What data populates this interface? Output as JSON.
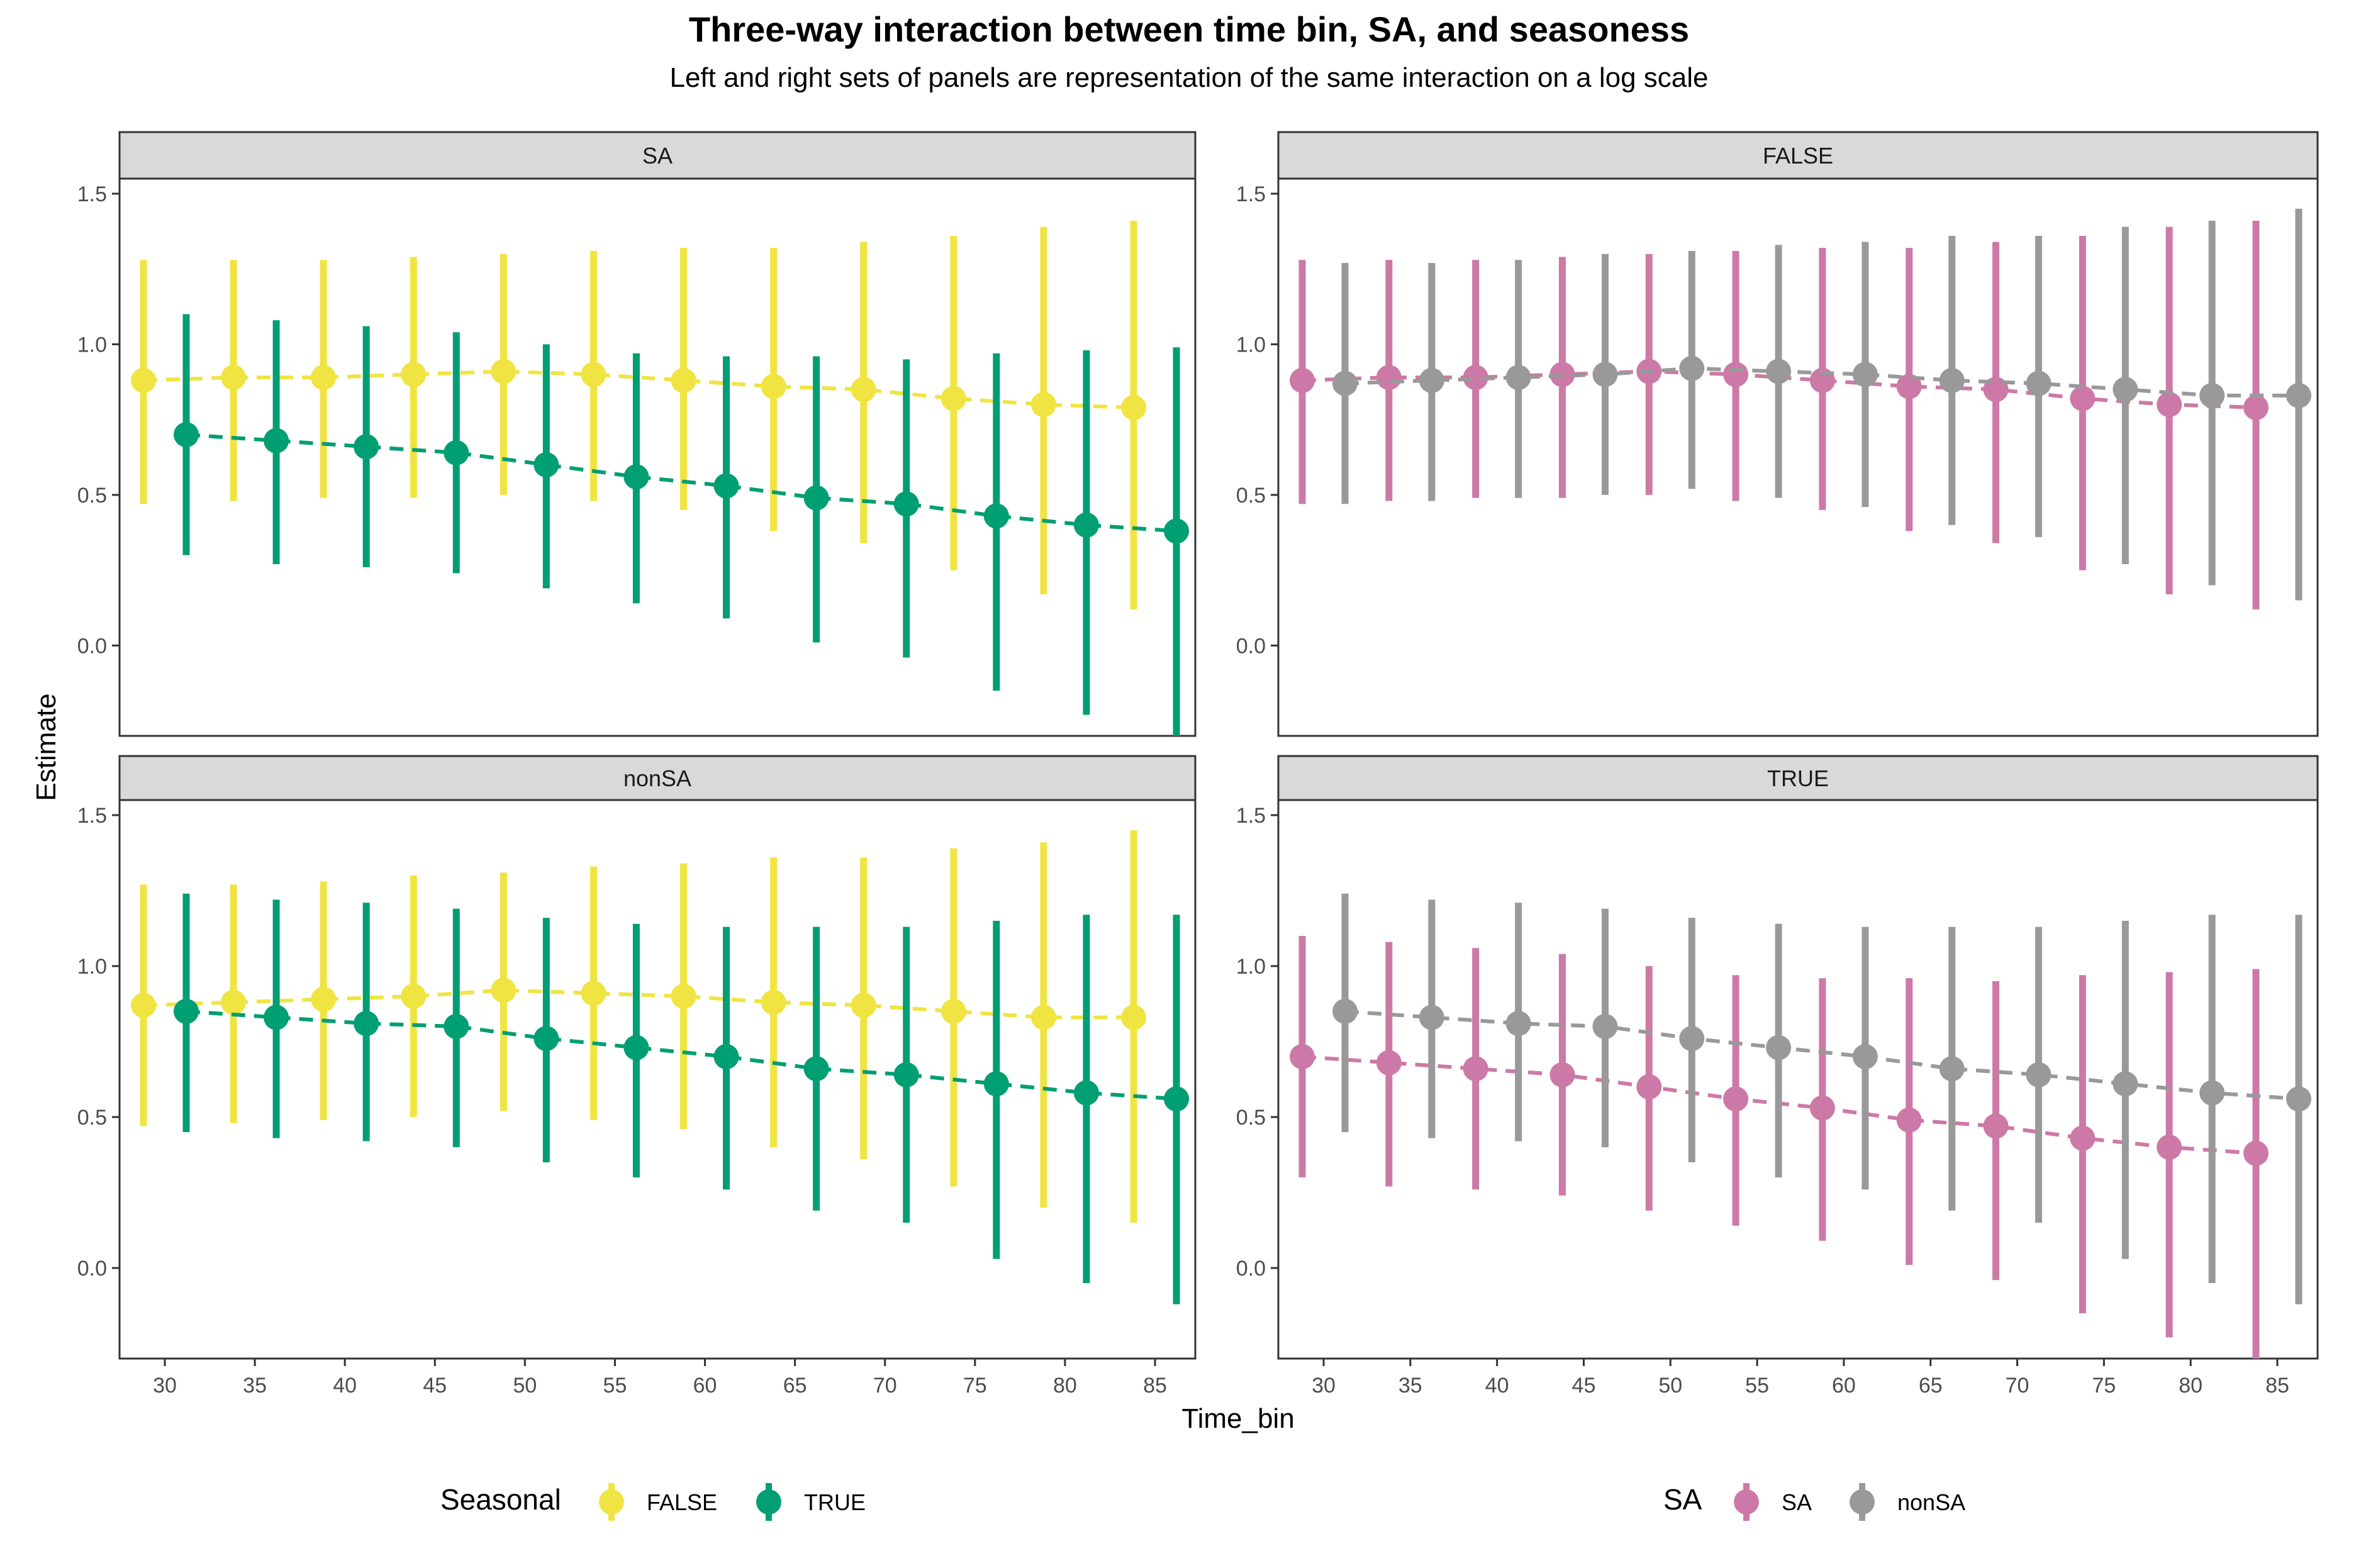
{
  "title": "Three-way interaction between time bin, SA, and seasoness",
  "subtitle": "Left and right sets of panels are representation of the same interaction on a log scale",
  "xlabel": "Time_bin",
  "ylabel": "Estimate",
  "colors": {
    "seasonal_false": "#F0E442",
    "seasonal_true": "#009E73",
    "sa": "#CC79A7",
    "nonsa": "#999999"
  },
  "legends": {
    "left": {
      "title": "Seasonal",
      "items": [
        "FALSE",
        "TRUE"
      ]
    },
    "right": {
      "title": "SA",
      "items": [
        "SA",
        "nonSA"
      ]
    }
  },
  "chart_data": [
    {
      "type": "scatter",
      "panel": "SA",
      "x": [
        30,
        35,
        40,
        45,
        50,
        55,
        60,
        65,
        70,
        75,
        80,
        85
      ],
      "ylim": [
        -0.3,
        1.55
      ],
      "yticks": [
        0.0,
        0.5,
        1.0,
        1.5
      ],
      "xticks": [
        30,
        35,
        40,
        45,
        50,
        55,
        60,
        65,
        70,
        75,
        80,
        85
      ],
      "series": [
        {
          "name": "FALSE",
          "color": "#F0E442",
          "y": [
            0.88,
            0.89,
            0.89,
            0.9,
            0.91,
            0.9,
            0.88,
            0.86,
            0.85,
            0.82,
            0.8,
            0.79
          ],
          "low": [
            0.47,
            0.48,
            0.49,
            0.49,
            0.5,
            0.48,
            0.45,
            0.38,
            0.34,
            0.25,
            0.17,
            0.12
          ],
          "high": [
            1.28,
            1.28,
            1.28,
            1.29,
            1.3,
            1.31,
            1.32,
            1.32,
            1.34,
            1.36,
            1.39,
            1.41
          ]
        },
        {
          "name": "TRUE",
          "color": "#009E73",
          "y": [
            0.7,
            0.68,
            0.66,
            0.64,
            0.6,
            0.56,
            0.53,
            0.49,
            0.47,
            0.43,
            0.4,
            0.38
          ],
          "low": [
            0.3,
            0.27,
            0.26,
            0.24,
            0.19,
            0.14,
            0.09,
            0.01,
            -0.04,
            -0.15,
            -0.23,
            -0.3
          ],
          "high": [
            1.1,
            1.08,
            1.06,
            1.04,
            1.0,
            0.97,
            0.96,
            0.96,
            0.95,
            0.97,
            0.98,
            0.99
          ]
        }
      ]
    },
    {
      "type": "scatter",
      "panel": "FALSE",
      "x": [
        30,
        35,
        40,
        45,
        50,
        55,
        60,
        65,
        70,
        75,
        80,
        85
      ],
      "ylim": [
        -0.3,
        1.55
      ],
      "yticks": [
        0.0,
        0.5,
        1.0,
        1.5
      ],
      "xticks": [
        30,
        35,
        40,
        45,
        50,
        55,
        60,
        65,
        70,
        75,
        80,
        85
      ],
      "series": [
        {
          "name": "SA",
          "color": "#CC79A7",
          "y": [
            0.88,
            0.89,
            0.89,
            0.9,
            0.91,
            0.9,
            0.88,
            0.86,
            0.85,
            0.82,
            0.8,
            0.79
          ],
          "low": [
            0.47,
            0.48,
            0.49,
            0.49,
            0.5,
            0.48,
            0.45,
            0.38,
            0.34,
            0.25,
            0.17,
            0.12
          ],
          "high": [
            1.28,
            1.28,
            1.28,
            1.29,
            1.3,
            1.31,
            1.32,
            1.32,
            1.34,
            1.36,
            1.39,
            1.41
          ]
        },
        {
          "name": "nonSA",
          "color": "#999999",
          "y": [
            0.87,
            0.88,
            0.89,
            0.9,
            0.92,
            0.91,
            0.9,
            0.88,
            0.87,
            0.85,
            0.83,
            0.83
          ],
          "low": [
            0.47,
            0.48,
            0.49,
            0.5,
            0.52,
            0.49,
            0.46,
            0.4,
            0.36,
            0.27,
            0.2,
            0.15
          ],
          "high": [
            1.27,
            1.27,
            1.28,
            1.3,
            1.31,
            1.33,
            1.34,
            1.36,
            1.36,
            1.39,
            1.41,
            1.45
          ]
        }
      ]
    },
    {
      "type": "scatter",
      "panel": "nonSA",
      "x": [
        30,
        35,
        40,
        45,
        50,
        55,
        60,
        65,
        70,
        75,
        80,
        85
      ],
      "ylim": [
        -0.3,
        1.55
      ],
      "yticks": [
        0.0,
        0.5,
        1.0,
        1.5
      ],
      "xticks": [
        30,
        35,
        40,
        45,
        50,
        55,
        60,
        65,
        70,
        75,
        80,
        85
      ],
      "series": [
        {
          "name": "FALSE",
          "color": "#F0E442",
          "y": [
            0.87,
            0.88,
            0.89,
            0.9,
            0.92,
            0.91,
            0.9,
            0.88,
            0.87,
            0.85,
            0.83,
            0.83
          ],
          "low": [
            0.47,
            0.48,
            0.49,
            0.5,
            0.52,
            0.49,
            0.46,
            0.4,
            0.36,
            0.27,
            0.2,
            0.15
          ],
          "high": [
            1.27,
            1.27,
            1.28,
            1.3,
            1.31,
            1.33,
            1.34,
            1.36,
            1.36,
            1.39,
            1.41,
            1.45
          ]
        },
        {
          "name": "TRUE",
          "color": "#009E73",
          "y": [
            0.85,
            0.83,
            0.81,
            0.8,
            0.76,
            0.73,
            0.7,
            0.66,
            0.64,
            0.61,
            0.58,
            0.56
          ],
          "low": [
            0.45,
            0.43,
            0.42,
            0.4,
            0.35,
            0.3,
            0.26,
            0.19,
            0.15,
            0.03,
            -0.05,
            -0.12
          ],
          "high": [
            1.24,
            1.22,
            1.21,
            1.19,
            1.16,
            1.14,
            1.13,
            1.13,
            1.13,
            1.15,
            1.17,
            1.17
          ]
        }
      ]
    },
    {
      "type": "scatter",
      "panel": "TRUE",
      "x": [
        30,
        35,
        40,
        45,
        50,
        55,
        60,
        65,
        70,
        75,
        80,
        85
      ],
      "ylim": [
        -0.3,
        1.55
      ],
      "yticks": [
        0.0,
        0.5,
        1.0,
        1.5
      ],
      "xticks": [
        30,
        35,
        40,
        45,
        50,
        55,
        60,
        65,
        70,
        75,
        80,
        85
      ],
      "series": [
        {
          "name": "SA",
          "color": "#CC79A7",
          "y": [
            0.7,
            0.68,
            0.66,
            0.64,
            0.6,
            0.56,
            0.53,
            0.49,
            0.47,
            0.43,
            0.4,
            0.38
          ],
          "low": [
            0.3,
            0.27,
            0.26,
            0.24,
            0.19,
            0.14,
            0.09,
            0.01,
            -0.04,
            -0.15,
            -0.23,
            -0.3
          ],
          "high": [
            1.1,
            1.08,
            1.06,
            1.04,
            1.0,
            0.97,
            0.96,
            0.96,
            0.95,
            0.97,
            0.98,
            0.99
          ]
        },
        {
          "name": "nonSA",
          "color": "#999999",
          "y": [
            0.85,
            0.83,
            0.81,
            0.8,
            0.76,
            0.73,
            0.7,
            0.66,
            0.64,
            0.61,
            0.58,
            0.56
          ],
          "low": [
            0.45,
            0.43,
            0.42,
            0.4,
            0.35,
            0.3,
            0.26,
            0.19,
            0.15,
            0.03,
            -0.05,
            -0.12
          ],
          "high": [
            1.24,
            1.22,
            1.21,
            1.19,
            1.16,
            1.14,
            1.13,
            1.13,
            1.13,
            1.15,
            1.17,
            1.17
          ]
        }
      ]
    }
  ]
}
